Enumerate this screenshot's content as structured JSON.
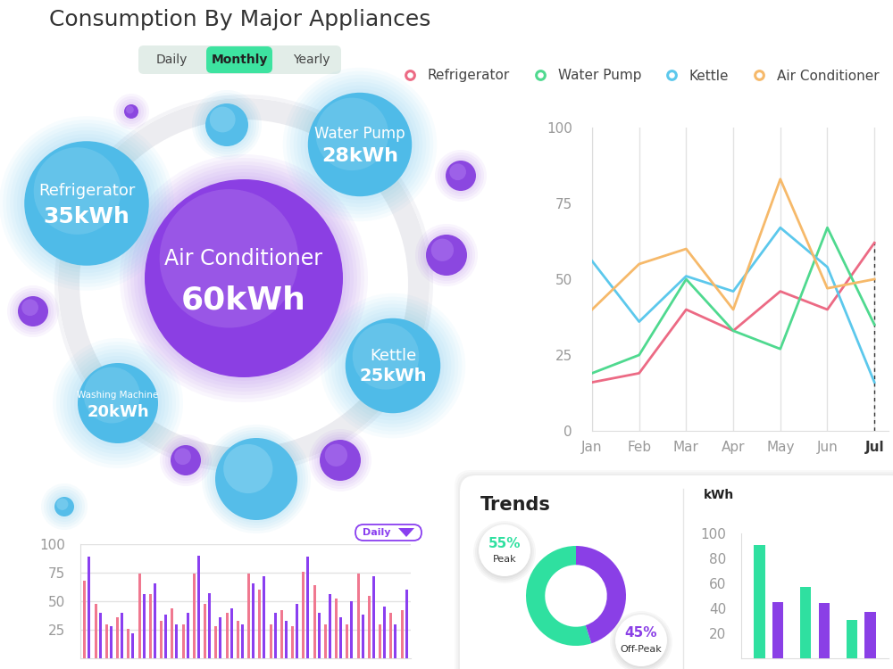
{
  "title": "Consumption By Major Appliances",
  "tabs": {
    "items": [
      "Daily",
      "Monthly",
      "Yearly"
    ],
    "selected": "Monthly"
  },
  "bubbles": [
    {
      "label": "Air Conditioner",
      "value": 60,
      "value_label": "60kWh",
      "color": "#8b3fe3"
    },
    {
      "label": "Refrigerator",
      "value": 35,
      "value_label": "35kWh",
      "color": "#4fbbe8"
    },
    {
      "label": "Water Pump",
      "value": 28,
      "value_label": "28kWh",
      "color": "#4fbbe8"
    },
    {
      "label": "Kettle",
      "value": 25,
      "value_label": "25kWh",
      "color": "#4fbbe8"
    },
    {
      "label": "Washing Machine",
      "value": 20,
      "value_label": "20kWh",
      "color": "#4fbbe8"
    }
  ],
  "chart_data": [
    {
      "type": "line",
      "categories": [
        "Jan",
        "Feb",
        "Mar",
        "Apr",
        "May",
        "Jun",
        "Jul"
      ],
      "series": [
        {
          "name": "Refrigerator",
          "color": "#ec6a84",
          "values": [
            16,
            19,
            40,
            33,
            46,
            40,
            62
          ]
        },
        {
          "name": "Water Pump",
          "color": "#4fd98f",
          "values": [
            19,
            25,
            50,
            33,
            27,
            67,
            35
          ]
        },
        {
          "name": "Kettle",
          "color": "#5cc8ec",
          "values": [
            56,
            36,
            51,
            46,
            67,
            54,
            16
          ]
        },
        {
          "name": "Air Conditioner",
          "color": "#f6b96a",
          "values": [
            40,
            55,
            60,
            40,
            83,
            47,
            50
          ]
        }
      ],
      "ylim": [
        0,
        100
      ],
      "yticks": [
        0,
        25,
        50,
        75,
        100
      ],
      "grid": true,
      "legend": "upper right"
    },
    {
      "type": "bar",
      "annotations": [
        "Daily"
      ],
      "categories": [
        null,
        null,
        null,
        null,
        null,
        null,
        null,
        null,
        null,
        null,
        null,
        null,
        null,
        null,
        null,
        null,
        null,
        null,
        null,
        null,
        null,
        null,
        null,
        null,
        null,
        null,
        null,
        null,
        null,
        null
      ],
      "series": [
        {
          "color": "#f07890",
          "values": [
            68,
            48,
            30,
            36,
            26,
            74,
            56,
            33,
            44,
            30,
            74,
            48,
            28,
            40,
            33,
            74,
            60,
            30,
            42,
            28,
            76,
            64,
            30,
            52,
            30,
            74,
            55,
            30,
            40,
            42
          ]
        },
        {
          "color": "#8a3ff0",
          "values": [
            89,
            40,
            28,
            40,
            22,
            56,
            66,
            38,
            30,
            40,
            90,
            57,
            36,
            44,
            30,
            66,
            72,
            40,
            33,
            48,
            89,
            40,
            56,
            36,
            50,
            38,
            72,
            45,
            30,
            60
          ]
        }
      ],
      "ylim": [
        0,
        100
      ],
      "yticks": [
        25,
        50,
        75,
        100
      ],
      "grid": true,
      "tick_labels": "y"
    },
    {
      "type": "pie",
      "title": "Trends",
      "categories": [
        "Peak",
        "Off-Peak"
      ],
      "values": [
        55,
        45
      ],
      "value_labels": [
        "55%",
        "45%"
      ],
      "colors": [
        "#2fe0a0",
        "#8a3fe6"
      ]
    },
    {
      "type": "bar",
      "ylabel": "kWh",
      "categories": [
        null,
        null,
        null
      ],
      "series": [
        {
          "color": "#2fe0a0",
          "values": [
            91,
            57,
            31
          ]
        },
        {
          "color": "#8a3fe6",
          "values": [
            45,
            44,
            37
          ]
        }
      ],
      "ylim": [
        0,
        100
      ],
      "yticks": [
        20,
        40,
        60,
        80,
        100
      ],
      "grid": false,
      "tick_labels": "y"
    }
  ]
}
